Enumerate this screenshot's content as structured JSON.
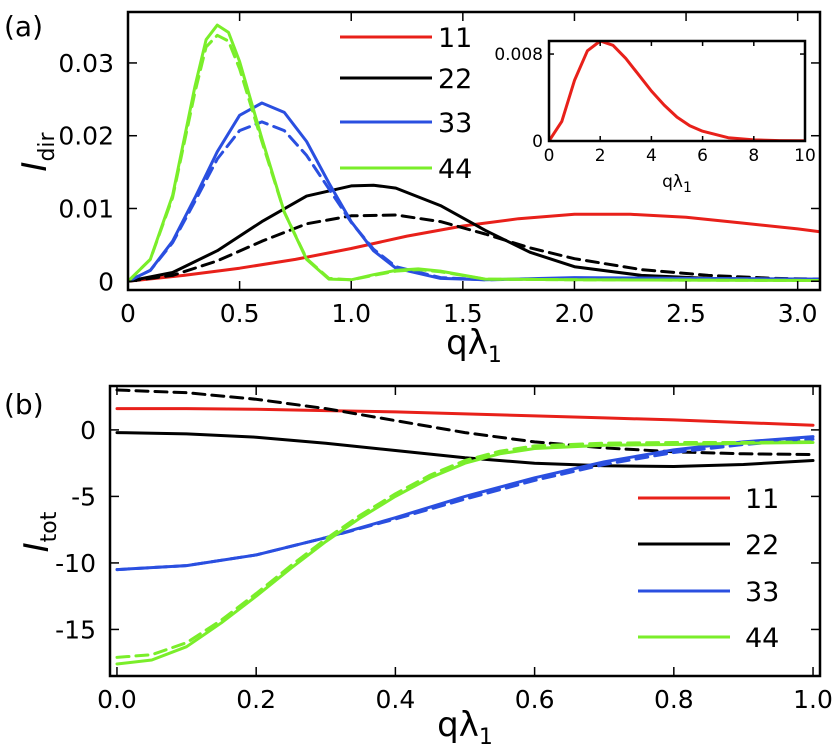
{
  "colors": {
    "11": "#e8201a",
    "22": "#000000",
    "33": "#2a4fe0",
    "44": "#7aee2a"
  },
  "chart_data": [
    {
      "type": "line",
      "panel": "(a)",
      "xlabel_base": "qλ",
      "xlabel_sub": "1",
      "ylabel_base": "I",
      "ylabel_sub": "dir",
      "xlim": [
        0,
        3.1
      ],
      "ylim": [
        -0.0012,
        0.037
      ],
      "xticks": [
        {
          "v": 0,
          "t": "0"
        },
        {
          "v": 0.5,
          "t": "0.5"
        },
        {
          "v": 1.0,
          "t": "1.0"
        },
        {
          "v": 1.5,
          "t": "1.5"
        },
        {
          "v": 2.0,
          "t": "2.0"
        },
        {
          "v": 2.5,
          "t": "2.5"
        },
        {
          "v": 3.0,
          "t": "3.0"
        }
      ],
      "yticks": [
        {
          "v": 0,
          "t": "0"
        },
        {
          "v": 0.01,
          "t": "0.01"
        },
        {
          "v": 0.02,
          "t": "0.02"
        },
        {
          "v": 0.03,
          "t": "0.03"
        }
      ],
      "legend": [
        {
          "key": "11",
          "label": "11"
        },
        {
          "key": "22",
          "label": "22"
        },
        {
          "key": "33",
          "label": "33"
        },
        {
          "key": "44",
          "label": "44"
        }
      ],
      "series": [
        {
          "key": "11",
          "style": "solid",
          "x": [
            0,
            0.25,
            0.5,
            0.75,
            1.0,
            1.25,
            1.5,
            1.75,
            2.0,
            2.25,
            2.5,
            2.75,
            3.0,
            3.1
          ],
          "y": [
            0,
            0.0008,
            0.0018,
            0.003,
            0.0045,
            0.0062,
            0.0076,
            0.0086,
            0.0092,
            0.0092,
            0.0088,
            0.008,
            0.0072,
            0.0068
          ]
        },
        {
          "key": "22",
          "style": "solid",
          "x": [
            0,
            0.2,
            0.4,
            0.6,
            0.8,
            1.0,
            1.1,
            1.2,
            1.4,
            1.6,
            1.8,
            2.0,
            2.3,
            2.6,
            3.1
          ],
          "y": [
            0,
            0.0012,
            0.0042,
            0.0082,
            0.0117,
            0.0131,
            0.0132,
            0.0128,
            0.0104,
            0.007,
            0.004,
            0.002,
            0.0008,
            0.0004,
            0.0002
          ]
        },
        {
          "key": "22",
          "style": "dashed",
          "x": [
            0,
            0.2,
            0.4,
            0.6,
            0.8,
            1.0,
            1.2,
            1.4,
            1.6,
            1.8,
            2.0,
            2.3,
            2.6,
            2.9,
            3.1
          ],
          "y": [
            0,
            0.0008,
            0.0028,
            0.0055,
            0.0079,
            0.009,
            0.0091,
            0.0082,
            0.0065,
            0.0046,
            0.0031,
            0.0016,
            0.0008,
            0.0004,
            0.0003
          ]
        },
        {
          "key": "33",
          "style": "solid",
          "x": [
            0,
            0.1,
            0.2,
            0.3,
            0.4,
            0.5,
            0.6,
            0.7,
            0.8,
            0.9,
            1.0,
            1.1,
            1.2,
            1.4,
            1.6,
            2.0,
            2.5,
            3.1
          ],
          "y": [
            0,
            0.0015,
            0.0055,
            0.0115,
            0.0178,
            0.0228,
            0.0245,
            0.0232,
            0.0192,
            0.0135,
            0.0082,
            0.0042,
            0.0018,
            0.0004,
            0.0002,
            0.0005,
            0.0004,
            0.0003
          ]
        },
        {
          "key": "33",
          "style": "dashed",
          "x": [
            0,
            0.1,
            0.2,
            0.3,
            0.4,
            0.5,
            0.6,
            0.7,
            0.8,
            0.9,
            1.0,
            1.1,
            1.2,
            1.4,
            1.6,
            2.0,
            2.5,
            3.1
          ],
          "y": [
            0,
            0.0015,
            0.0053,
            0.011,
            0.0168,
            0.0207,
            0.0219,
            0.0207,
            0.0173,
            0.0127,
            0.0081,
            0.0044,
            0.002,
            0.0005,
            0.0002,
            0.0004,
            0.0003,
            0.0002
          ]
        },
        {
          "key": "44",
          "style": "solid",
          "x": [
            0,
            0.1,
            0.2,
            0.3,
            0.35,
            0.4,
            0.45,
            0.5,
            0.6,
            0.7,
            0.8,
            0.9,
            1.0,
            1.1,
            1.2,
            1.3,
            1.4,
            1.6,
            2.0,
            3.1
          ],
          "y": [
            0,
            0.003,
            0.0118,
            0.0268,
            0.0332,
            0.0352,
            0.0342,
            0.0302,
            0.0196,
            0.0095,
            0.003,
            0.0003,
            0.0002,
            0.0009,
            0.0015,
            0.0017,
            0.0014,
            0.0003,
            0.0002,
            0.0001
          ]
        },
        {
          "key": "44",
          "style": "dashed",
          "x": [
            0,
            0.1,
            0.2,
            0.3,
            0.35,
            0.4,
            0.45,
            0.5,
            0.6,
            0.7,
            0.8,
            0.9,
            1.0,
            1.1,
            1.2,
            1.3,
            1.4,
            1.6,
            2.0,
            3.1
          ],
          "y": [
            0,
            0.003,
            0.0115,
            0.026,
            0.0322,
            0.0338,
            0.033,
            0.0292,
            0.0192,
            0.0095,
            0.0031,
            0.0004,
            0.0002,
            0.0008,
            0.0014,
            0.0016,
            0.0013,
            0.0003,
            0.0002,
            0.0001
          ]
        }
      ]
    },
    {
      "type": "line",
      "panel": "inset",
      "xlabel_base": "qλ",
      "xlabel_sub": "1",
      "xlim": [
        0,
        10
      ],
      "ylim": [
        0,
        0.0092
      ],
      "xticks": [
        {
          "v": 0,
          "t": "0"
        },
        {
          "v": 2,
          "t": "2"
        },
        {
          "v": 4,
          "t": "4"
        },
        {
          "v": 6,
          "t": "6"
        },
        {
          "v": 8,
          "t": "8"
        },
        {
          "v": 10,
          "t": "10"
        }
      ],
      "yticks": [
        {
          "v": 0,
          "t": "0"
        },
        {
          "v": 0.008,
          "t": "0.008"
        }
      ],
      "series": [
        {
          "key": "11",
          "style": "solid",
          "x": [
            0,
            0.5,
            1,
            1.5,
            2,
            2.5,
            3,
            3.5,
            4,
            4.5,
            5,
            5.5,
            6,
            7,
            8,
            9,
            10
          ],
          "y": [
            0,
            0.0018,
            0.0056,
            0.0083,
            0.0092,
            0.0088,
            0.0076,
            0.0061,
            0.0046,
            0.0033,
            0.0022,
            0.0014,
            0.0009,
            0.0003,
            0.0001,
            4e-05,
            2e-05
          ]
        }
      ]
    },
    {
      "type": "line",
      "panel": "(b)",
      "xlabel_base": "qλ",
      "xlabel_sub": "1",
      "ylabel_base": "I",
      "ylabel_sub": "tot",
      "xlim": [
        -0.01,
        1.01
      ],
      "ylim": [
        -18.5,
        3.3
      ],
      "xticks": [
        {
          "v": 0,
          "t": "0.0"
        },
        {
          "v": 0.2,
          "t": "0.2"
        },
        {
          "v": 0.4,
          "t": "0.4"
        },
        {
          "v": 0.6,
          "t": "0.6"
        },
        {
          "v": 0.8,
          "t": "0.8"
        },
        {
          "v": 1.0,
          "t": "1.0"
        }
      ],
      "yticks": [
        {
          "v": 0,
          "t": "0"
        },
        {
          "v": -5,
          "t": "-5"
        },
        {
          "v": -10,
          "t": "-10"
        },
        {
          "v": -15,
          "t": "-15"
        }
      ],
      "legend": [
        {
          "key": "11",
          "label": "11"
        },
        {
          "key": "22",
          "label": "22"
        },
        {
          "key": "33",
          "label": "33"
        },
        {
          "key": "44",
          "label": "44"
        }
      ],
      "series": [
        {
          "key": "11",
          "style": "solid",
          "x": [
            0,
            0.1,
            0.2,
            0.3,
            0.4,
            0.5,
            0.6,
            0.7,
            0.8,
            0.9,
            1.0
          ],
          "y": [
            1.6,
            1.6,
            1.55,
            1.45,
            1.35,
            1.2,
            1.05,
            0.9,
            0.75,
            0.55,
            0.35
          ]
        },
        {
          "key": "22",
          "style": "solid",
          "x": [
            0,
            0.1,
            0.2,
            0.3,
            0.4,
            0.5,
            0.6,
            0.7,
            0.8,
            0.9,
            1.0
          ],
          "y": [
            -0.2,
            -0.3,
            -0.55,
            -1.0,
            -1.55,
            -2.1,
            -2.5,
            -2.7,
            -2.75,
            -2.6,
            -2.3
          ]
        },
        {
          "key": "22",
          "style": "dashed",
          "x": [
            0,
            0.1,
            0.2,
            0.3,
            0.4,
            0.5,
            0.6,
            0.7,
            0.8,
            0.9,
            1.0
          ],
          "y": [
            3.0,
            2.8,
            2.3,
            1.6,
            0.7,
            -0.2,
            -0.9,
            -1.35,
            -1.65,
            -1.8,
            -1.85
          ]
        },
        {
          "key": "33",
          "style": "solid",
          "x": [
            0,
            0.1,
            0.2,
            0.3,
            0.4,
            0.5,
            0.6,
            0.7,
            0.8,
            0.9,
            1.0
          ],
          "y": [
            -10.5,
            -10.2,
            -9.4,
            -8.1,
            -6.6,
            -5.0,
            -3.6,
            -2.4,
            -1.5,
            -0.9,
            -0.5
          ]
        },
        {
          "key": "33",
          "style": "dashed",
          "x": [
            0,
            0.1,
            0.2,
            0.3,
            0.4,
            0.5,
            0.6,
            0.7,
            0.8,
            0.9,
            1.0
          ],
          "y": [
            -10.5,
            -10.2,
            -9.4,
            -8.1,
            -6.7,
            -5.2,
            -3.8,
            -2.6,
            -1.7,
            -1.1,
            -0.7
          ]
        },
        {
          "key": "44",
          "style": "solid",
          "x": [
            0,
            0.05,
            0.1,
            0.15,
            0.2,
            0.25,
            0.3,
            0.35,
            0.4,
            0.45,
            0.5,
            0.55,
            0.6,
            0.7,
            0.8,
            0.9,
            1.0
          ],
          "y": [
            -17.6,
            -17.3,
            -16.3,
            -14.5,
            -12.5,
            -10.4,
            -8.4,
            -6.6,
            -5.0,
            -3.6,
            -2.5,
            -1.8,
            -1.4,
            -1.15,
            -1.1,
            -1.0,
            -0.95
          ]
        },
        {
          "key": "44",
          "style": "dashed",
          "x": [
            0,
            0.05,
            0.1,
            0.15,
            0.2,
            0.25,
            0.3,
            0.35,
            0.4,
            0.45,
            0.5,
            0.55,
            0.6,
            0.7,
            0.8,
            0.9,
            1.0
          ],
          "y": [
            -17.1,
            -16.9,
            -16.0,
            -14.3,
            -12.3,
            -10.2,
            -8.2,
            -6.4,
            -4.8,
            -3.4,
            -2.3,
            -1.6,
            -1.2,
            -1.0,
            -0.95,
            -0.95,
            -0.9
          ]
        }
      ]
    }
  ]
}
